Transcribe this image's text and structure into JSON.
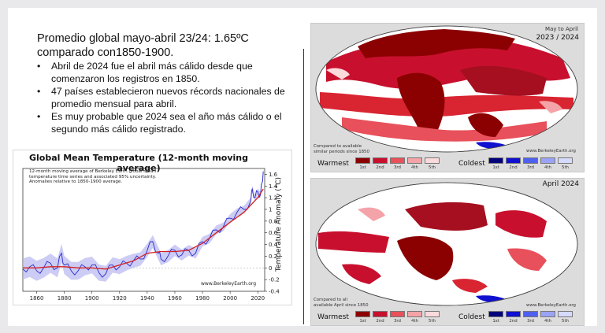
{
  "slide": {
    "title_line1": "Promedio global mayo-abril 23/24: 1.65ºC",
    "title_line2": "comparado con1850-1900.",
    "bullets": [
      "Abril de 2024 fue el abril más cálido desde que comenzaron los registros en 1850.",
      "47 países establecieron nuevos récords nacionales de promedio mensual para abril.",
      "Es muy probable que 2024 sea el año más cálido o el segundo más cálido registrado."
    ]
  },
  "chart_data": {
    "type": "line",
    "title": "Global Mean Temperature (12-month moving average)",
    "note_lines": [
      "12-month moving average of Berkeley Earth global mean",
      "temperature time series and associated 95% uncertainty.",
      "Anomalies relative to 1850-1900 average."
    ],
    "ylabel": "Temperature Anomaly (°C)",
    "credit": "www.BerkeleyEarth.org",
    "xlim": [
      1850,
      2025
    ],
    "ylim": [
      -0.4,
      1.7
    ],
    "x_ticks": [
      1860,
      1880,
      1900,
      1920,
      1940,
      1960,
      1980,
      2000,
      2020
    ],
    "y_ticks": [
      -0.4,
      -0.2,
      0,
      0.2,
      0.4,
      0.6,
      0.8,
      1.0,
      1.2,
      1.4,
      1.6
    ],
    "y_tick_labels": [
      "-0.4",
      "-0.2",
      "0",
      "0.2",
      "0.4",
      "0.6",
      "0.8",
      "1",
      "1.2",
      "1.4",
      "1.6"
    ],
    "series": [
      {
        "style": "blue-jagged",
        "color": "#2a2ad0",
        "x": [
          1850,
          1855,
          1860,
          1865,
          1870,
          1875,
          1878,
          1880,
          1885,
          1890,
          1895,
          1900,
          1905,
          1910,
          1915,
          1920,
          1925,
          1930,
          1935,
          1940,
          1944,
          1948,
          1950,
          1955,
          1960,
          1965,
          1970,
          1975,
          1980,
          1985,
          1990,
          1995,
          2000,
          2005,
          2010,
          2015,
          2016,
          2018,
          2020,
          2022,
          2023,
          2024
        ],
        "y": [
          -0.02,
          0.02,
          -0.05,
          0.0,
          0.08,
          0.0,
          0.25,
          0.05,
          -0.05,
          -0.05,
          0.02,
          0.05,
          -0.08,
          -0.1,
          0.05,
          0.02,
          0.08,
          0.12,
          0.15,
          0.3,
          0.45,
          0.25,
          0.15,
          0.2,
          0.3,
          0.22,
          0.3,
          0.25,
          0.45,
          0.5,
          0.65,
          0.7,
          0.85,
          0.95,
          1.0,
          1.15,
          1.35,
          1.2,
          1.3,
          1.25,
          1.45,
          1.65
        ]
      },
      {
        "style": "red-smooth",
        "color": "#d42020",
        "x": [
          1850,
          1860,
          1870,
          1880,
          1890,
          1900,
          1910,
          1920,
          1930,
          1940,
          1950,
          1960,
          1970,
          1980,
          1990,
          2000,
          2010,
          2020,
          2024
        ],
        "y": [
          0.0,
          0.0,
          0.02,
          0.02,
          0.0,
          0.0,
          -0.02,
          0.05,
          0.12,
          0.25,
          0.28,
          0.28,
          0.3,
          0.42,
          0.6,
          0.78,
          0.95,
          1.2,
          1.35
        ]
      }
    ]
  },
  "maps": [
    {
      "title_lines": [
        "May to April",
        "2023 / 2024"
      ],
      "caption_lines": [
        "Compared to available",
        "similar periods since 1850"
      ],
      "credit": "www.BerkeleyEarth.org"
    },
    {
      "title_lines": [
        "April 2024"
      ],
      "caption_lines": [
        "Compared to all",
        "available April since 1850"
      ],
      "credit": "www.BerkeleyEarth.org"
    }
  ],
  "legend": {
    "warmest_label": "Warmest",
    "coldest_label": "Coldest",
    "ranks": [
      "1st",
      "2nd",
      "3rd",
      "4th",
      "5th"
    ],
    "warm_colors": [
      "#8b0000",
      "#c8102e",
      "#e8505b",
      "#f4a3a8",
      "#fbdadc"
    ],
    "cold_colors": [
      "#00007a",
      "#1010d0",
      "#5060ee",
      "#9aa3f5",
      "#d6dafc"
    ]
  }
}
